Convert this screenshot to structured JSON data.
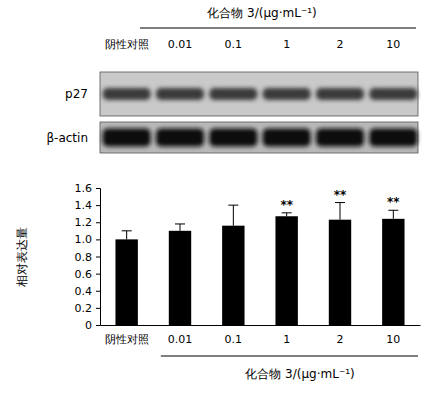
{
  "chart_data": {
    "type": "bar",
    "x_label": "化合物 3/(μg·mL⁻¹)",
    "y_label": "相对表达量",
    "categories": [
      "阴性对照",
      "0.01",
      "0.1",
      "1",
      "2",
      "10"
    ],
    "values": [
      1.0,
      1.1,
      1.16,
      1.27,
      1.23,
      1.24
    ],
    "errors": [
      0.1,
      0.08,
      0.24,
      0.04,
      0.2,
      0.1
    ],
    "significance": [
      null,
      null,
      null,
      "**",
      "**",
      "**"
    ],
    "color": "#000000",
    "ylim": [
      0,
      1.6
    ],
    "yticks": [
      0,
      0.2,
      0.4,
      0.6,
      0.8,
      {
        "value": 1,
        "label": "1.0"
      },
      1.2,
      1.4,
      1.6
    ],
    "grid": false
  },
  "blot": {
    "rows": [
      "p27",
      "β-actin"
    ]
  }
}
